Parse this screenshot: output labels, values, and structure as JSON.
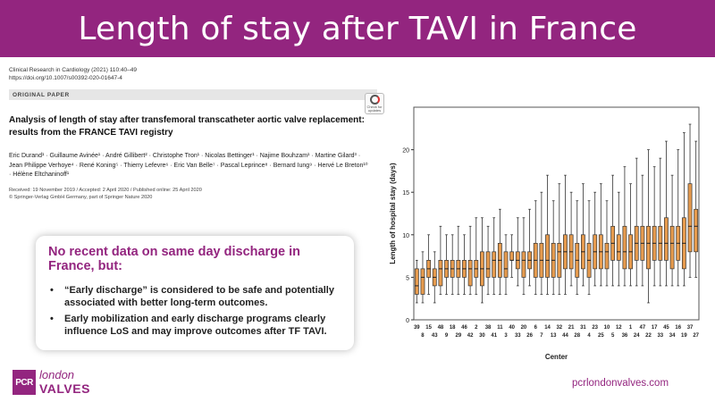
{
  "header": {
    "title": "Length of stay after TAVI in France"
  },
  "paper": {
    "journal_line1": "Clinical Research in Cardiology (2021) 110:40–49",
    "journal_line2": "https://doi.org/10.1007/s00392-020-01647-4",
    "section": "ORIGINAL PAPER",
    "badge": "Check for updates",
    "title": "Analysis of length of stay after transfemoral transcatheter aortic valve replacement: results from the FRANCE TAVI registry",
    "authors": "Eric Durand¹ · Guillaume Avinée¹ · André Gillibert² · Christophe Tron¹ · Nicolas Bettinger¹ · Najime Bouhzam¹ · Martine Gilard³ · Jean Philippe Verhoye⁴ · René Koning⁵ · Thierry Lefevre⁶ · Eric Van Belle⁷ · Pascal Leprince⁸ · Bernard Iung⁹ · Hervé Le Breton¹⁰ · Hélène Eltchaninoff¹",
    "received": "Received: 19 November 2019 / Accepted: 2 April 2020 / Published online: 25 April 2020",
    "copyright": "© Springer-Verlag GmbH Germany, part of Springer Nature 2020"
  },
  "callout": {
    "heading": "No recent data on same day discharge in France, but:",
    "bullets": [
      "“Early discharge” is considered to be safe and potentially associated with better long-term outcomes.",
      "Early mobilization and early discharge programs clearly influence LoS and may improve outcomes after TF TAVI."
    ]
  },
  "footer": {
    "logo_pcr": "PCR",
    "logo_london": "london",
    "logo_valves": "VALVES",
    "website": "pcrlondonvalves.com"
  },
  "colors": {
    "brand": "#93257f",
    "box_fill": "#e69b4e",
    "box_stroke": "#333333"
  },
  "chart_data": {
    "type": "boxplot",
    "xlabel": "Center",
    "ylabel": "Length of hospital stay (days)",
    "ylim": [
      0,
      25
    ],
    "yticks": [
      0,
      5,
      10,
      15,
      20
    ],
    "categories": [
      "39",
      "8",
      "15",
      "43",
      "48",
      "9",
      "18",
      "29",
      "46",
      "42",
      "2",
      "30",
      "38",
      "41",
      "11",
      "3",
      "40",
      "33",
      "20",
      "26",
      "6",
      "7",
      "14",
      "13",
      "32",
      "44",
      "21",
      "28",
      "31",
      "4",
      "23",
      "25",
      "10",
      "5",
      "12",
      "36",
      "1",
      "24",
      "47",
      "22",
      "17",
      "33",
      "45",
      "34",
      "16",
      "19",
      "37",
      "27"
    ],
    "boxes": [
      {
        "min": 2,
        "q1": 3,
        "median": 4,
        "q3": 6,
        "max": 7
      },
      {
        "min": 2,
        "q1": 3,
        "median": 5,
        "q3": 6,
        "max": 8
      },
      {
        "min": 3,
        "q1": 5,
        "median": 6,
        "q3": 7,
        "max": 10
      },
      {
        "min": 2,
        "q1": 4,
        "median": 5,
        "q3": 6,
        "max": 8
      },
      {
        "min": 3,
        "q1": 4,
        "median": 6,
        "q3": 7,
        "max": 11
      },
      {
        "min": 3,
        "q1": 5,
        "median": 6,
        "q3": 7,
        "max": 10
      },
      {
        "min": 3,
        "q1": 5,
        "median": 6,
        "q3": 7,
        "max": 10
      },
      {
        "min": 3,
        "q1": 5,
        "median": 6,
        "q3": 7,
        "max": 11
      },
      {
        "min": 3,
        "q1": 5,
        "median": 6,
        "q3": 7,
        "max": 10
      },
      {
        "min": 3,
        "q1": 4,
        "median": 6,
        "q3": 7,
        "max": 11
      },
      {
        "min": 3,
        "q1": 5,
        "median": 6,
        "q3": 7,
        "max": 12
      },
      {
        "min": 2,
        "q1": 4,
        "median": 6,
        "q3": 8,
        "max": 12
      },
      {
        "min": 3,
        "q1": 5,
        "median": 6,
        "q3": 8,
        "max": 11
      },
      {
        "min": 3,
        "q1": 5,
        "median": 7,
        "q3": 8,
        "max": 12
      },
      {
        "min": 3,
        "q1": 5,
        "median": 7,
        "q3": 9,
        "max": 13
      },
      {
        "min": 3,
        "q1": 5,
        "median": 6,
        "q3": 8,
        "max": 10
      },
      {
        "min": 5,
        "q1": 7,
        "median": 7,
        "q3": 8,
        "max": 10
      },
      {
        "min": 4,
        "q1": 6,
        "median": 7,
        "q3": 8,
        "max": 12
      },
      {
        "min": 3,
        "q1": 5,
        "median": 7,
        "q3": 8,
        "max": 12
      },
      {
        "min": 4,
        "q1": 6,
        "median": 7,
        "q3": 8,
        "max": 13
      },
      {
        "min": 3,
        "q1": 5,
        "median": 7,
        "q3": 9,
        "max": 14
      },
      {
        "min": 3,
        "q1": 5,
        "median": 7,
        "q3": 9,
        "max": 15
      },
      {
        "min": 3,
        "q1": 5,
        "median": 7,
        "q3": 10,
        "max": 17
      },
      {
        "min": 3,
        "q1": 5,
        "median": 7,
        "q3": 9,
        "max": 14
      },
      {
        "min": 3,
        "q1": 5,
        "median": 8,
        "q3": 9,
        "max": 16
      },
      {
        "min": 3,
        "q1": 6,
        "median": 8,
        "q3": 10,
        "max": 17
      },
      {
        "min": 4,
        "q1": 6,
        "median": 8,
        "q3": 10,
        "max": 15
      },
      {
        "min": 3,
        "q1": 5,
        "median": 7,
        "q3": 9,
        "max": 14
      },
      {
        "min": 4,
        "q1": 6,
        "median": 8,
        "q3": 10,
        "max": 16
      },
      {
        "min": 3,
        "q1": 5,
        "median": 7,
        "q3": 9,
        "max": 14
      },
      {
        "min": 4,
        "q1": 6,
        "median": 8,
        "q3": 10,
        "max": 15
      },
      {
        "min": 4,
        "q1": 6,
        "median": 8,
        "q3": 10,
        "max": 16
      },
      {
        "min": 4,
        "q1": 6,
        "median": 8,
        "q3": 9,
        "max": 14
      },
      {
        "min": 4,
        "q1": 7,
        "median": 9,
        "q3": 11,
        "max": 17
      },
      {
        "min": 4,
        "q1": 7,
        "median": 8,
        "q3": 10,
        "max": 15
      },
      {
        "min": 4,
        "q1": 6,
        "median": 8,
        "q3": 11,
        "max": 18
      },
      {
        "min": 4,
        "q1": 6,
        "median": 8,
        "q3": 10,
        "max": 16
      },
      {
        "min": 4,
        "q1": 7,
        "median": 9,
        "q3": 11,
        "max": 19
      },
      {
        "min": 4,
        "q1": 7,
        "median": 9,
        "q3": 11,
        "max": 17
      },
      {
        "min": 2,
        "q1": 6,
        "median": 9,
        "q3": 11,
        "max": 20
      },
      {
        "min": 4,
        "q1": 7,
        "median": 9,
        "q3": 11,
        "max": 18
      },
      {
        "min": 4,
        "q1": 7,
        "median": 9,
        "q3": 11,
        "max": 19
      },
      {
        "min": 4,
        "q1": 7,
        "median": 9,
        "q3": 12,
        "max": 21
      },
      {
        "min": 4,
        "q1": 6,
        "median": 9,
        "q3": 11,
        "max": 17
      },
      {
        "min": 4,
        "q1": 7,
        "median": 9,
        "q3": 11,
        "max": 20
      },
      {
        "min": 4,
        "q1": 6,
        "median": 9,
        "q3": 12,
        "max": 22
      },
      {
        "min": 5,
        "q1": 8,
        "median": 11,
        "q3": 16,
        "max": 23
      },
      {
        "min": 5,
        "q1": 8,
        "median": 11,
        "q3": 13,
        "max": 21
      }
    ]
  }
}
